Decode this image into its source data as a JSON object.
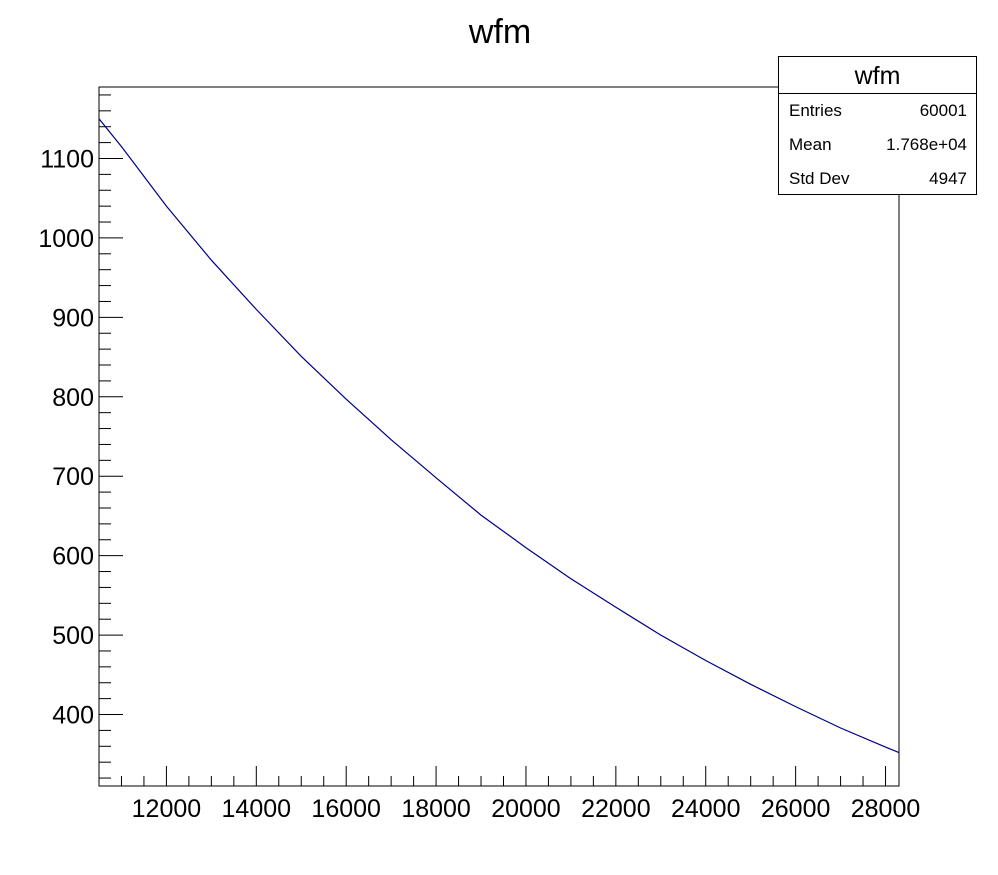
{
  "chart_data": {
    "type": "line",
    "title": "wfm",
    "xlabel": "",
    "ylabel": "",
    "xlim": [
      10500,
      28300
    ],
    "ylim": [
      310,
      1190
    ],
    "x_ticks": [
      12000,
      14000,
      16000,
      18000,
      20000,
      22000,
      24000,
      26000,
      28000
    ],
    "y_ticks": [
      400,
      500,
      600,
      700,
      800,
      900,
      1000,
      1100
    ],
    "series": [
      {
        "color": "#000080",
        "x": [
          10500,
          11000,
          12000,
          13000,
          14000,
          15000,
          16000,
          17000,
          18000,
          19000,
          20000,
          21000,
          22000,
          23000,
          24000,
          25000,
          26000,
          27000,
          28000,
          28300
        ],
        "y": [
          1150,
          1115,
          1040,
          972,
          910,
          851,
          797,
          746,
          698,
          651,
          610,
          571,
          535,
          500,
          468,
          438,
          410,
          383,
          359,
          352
        ]
      }
    ],
    "grid": false,
    "legend": "none"
  },
  "stats": {
    "title": "wfm",
    "rows": [
      {
        "key": "Entries",
        "value": "60001"
      },
      {
        "key": "Mean",
        "value": "1.768e+04"
      },
      {
        "key": "Std Dev",
        "value": "4947"
      }
    ]
  }
}
